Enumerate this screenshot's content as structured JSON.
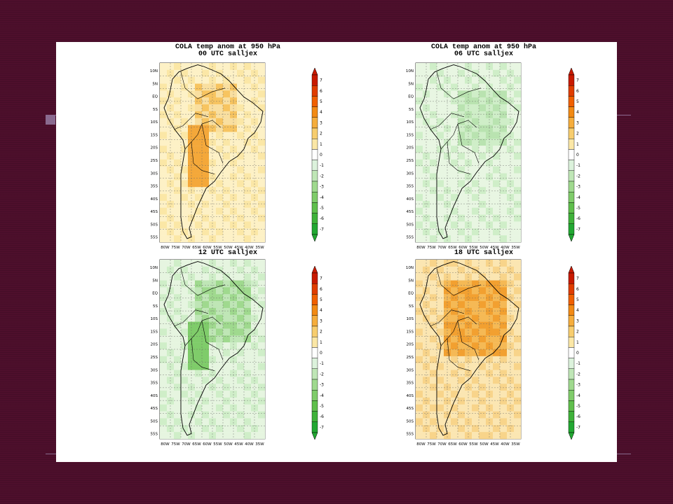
{
  "slide": {
    "background_color": "#4e0f2c",
    "accent_color": "#8a6a8f"
  },
  "figure": {
    "background_color": "#ffffff",
    "title_lines": [
      "COLA temp anom at 950 hPa"
    ],
    "latitude_labels": [
      "10N",
      "5N",
      "EQ",
      "5S",
      "10S",
      "15S",
      "20S",
      "25S",
      "30S",
      "35S",
      "40S",
      "45S",
      "50S",
      "55S"
    ],
    "longitude_labels": [
      "80W",
      "75W",
      "70W",
      "65W",
      "60W",
      "55W",
      "50W",
      "45W",
      "40W",
      "35W"
    ],
    "colorbar": {
      "labels": [
        "7",
        "6",
        "5",
        "4",
        "3",
        "2",
        "1",
        "0",
        "-1",
        "-2",
        "-3",
        "-4",
        "-5",
        "-6",
        "-7"
      ],
      "colors": [
        "#c81a00",
        "#e03d00",
        "#f06000",
        "#f28a14",
        "#f5ad3c",
        "#f7cd6e",
        "#fbe7a6",
        "#ffffff",
        "#dcf2dc",
        "#bfe6b6",
        "#9fd98e",
        "#7fcc6a",
        "#5fbf4c",
        "#3fb23a",
        "#22a832"
      ]
    },
    "panels": [
      {
        "id": "00",
        "title1": "COLA temp anom at 950 hPa",
        "title2": "00 UTC salljex",
        "theme": "warm"
      },
      {
        "id": "06",
        "title1": "COLA temp anom at 950 hPa",
        "title2": "06 UTC salljex",
        "theme": "cool"
      },
      {
        "id": "12",
        "title1": "",
        "title2": "12 UTC salljex",
        "theme": "cool2"
      },
      {
        "id": "18",
        "title1": "",
        "title2": "18 UTC salljex",
        "theme": "hot"
      }
    ]
  }
}
